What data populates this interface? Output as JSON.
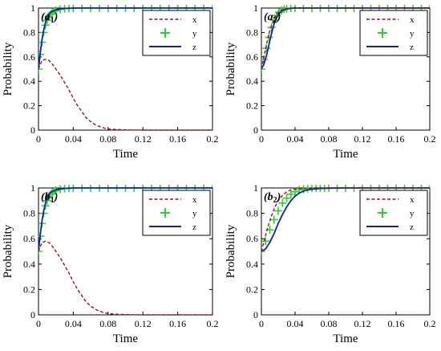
{
  "chart_data": [
    {
      "type": "line",
      "panel_label": "a",
      "panel_sub": "1",
      "xlabel": "Time",
      "ylabel": "Probability",
      "xlim": [
        0,
        0.2
      ],
      "ylim": [
        0,
        1
      ],
      "xticks": [
        "0",
        "0.04",
        "0.08",
        "0.12",
        "0.16",
        "0.2"
      ],
      "yticks": [
        "0",
        "0.2",
        "0.4",
        "0.6",
        "0.8",
        "1"
      ],
      "legend_position": "top-right",
      "series": [
        {
          "name": "x",
          "style": "dashed",
          "color": "#8b1a1a",
          "x": [
            0,
            0.004,
            0.008,
            0.012,
            0.016,
            0.02,
            0.025,
            0.03,
            0.035,
            0.04,
            0.045,
            0.05,
            0.055,
            0.06,
            0.065,
            0.07,
            0.075,
            0.08,
            0.09,
            0.1,
            0.12,
            0.14,
            0.16,
            0.18,
            0.2
          ],
          "y": [
            0.5,
            0.57,
            0.58,
            0.57,
            0.54,
            0.5,
            0.45,
            0.39,
            0.33,
            0.26,
            0.2,
            0.15,
            0.1,
            0.07,
            0.045,
            0.03,
            0.018,
            0.01,
            0.005,
            0.002,
            0,
            0,
            0,
            0,
            0
          ]
        },
        {
          "name": "y",
          "style": "plus",
          "color": "#33cc33",
          "x": [
            0,
            0.002,
            0.004,
            0.006,
            0.008,
            0.01,
            0.012,
            0.014,
            0.016,
            0.018,
            0.02,
            0.025,
            0.03,
            0.035,
            0.04,
            0.05,
            0.06,
            0.07,
            0.08,
            0.09,
            0.1,
            0.11,
            0.12,
            0.13,
            0.14,
            0.15,
            0.16,
            0.17,
            0.18,
            0.19,
            0.2
          ],
          "y": [
            0.5,
            0.62,
            0.72,
            0.8,
            0.86,
            0.9,
            0.93,
            0.95,
            0.965,
            0.975,
            0.98,
            0.99,
            0.995,
            0.997,
            0.998,
            1,
            1,
            1,
            1,
            1,
            1,
            1,
            1,
            1,
            1,
            1,
            1,
            1,
            1,
            1,
            1
          ]
        },
        {
          "name": "z",
          "style": "solid",
          "color": "#0b24a8",
          "x": [
            0,
            0.002,
            0.004,
            0.006,
            0.008,
            0.01,
            0.012,
            0.015,
            0.02,
            0.025,
            0.03,
            0.04,
            0.05,
            0.08,
            0.12,
            0.16,
            0.2
          ],
          "y": [
            0.5,
            0.63,
            0.74,
            0.82,
            0.88,
            0.92,
            0.95,
            0.97,
            0.985,
            0.993,
            0.997,
            1,
            1,
            1,
            1,
            1,
            1
          ]
        }
      ]
    },
    {
      "type": "line",
      "panel_label": "a",
      "panel_sub": "2",
      "xlabel": "Time",
      "ylabel": "Probability",
      "xlim": [
        0,
        0.2
      ],
      "ylim": [
        0,
        1
      ],
      "xticks": [
        "0",
        "0.04",
        "0.08",
        "0.12",
        "0.16",
        "0.2"
      ],
      "yticks": [
        "0",
        "0.2",
        "0.4",
        "0.6",
        "0.8",
        "1"
      ],
      "legend_position": "top-right",
      "series": [
        {
          "name": "x",
          "style": "dashed",
          "color": "#8b1a1a",
          "x": [
            0,
            0.003,
            0.006,
            0.009,
            0.012,
            0.015,
            0.018,
            0.021,
            0.025,
            0.03,
            0.035,
            0.04,
            0.06,
            0.1,
            0.14,
            0.2
          ],
          "y": [
            0.5,
            0.6,
            0.7,
            0.79,
            0.86,
            0.91,
            0.95,
            0.97,
            0.985,
            0.995,
            0.998,
            1,
            1,
            1,
            1,
            1
          ]
        },
        {
          "name": "y",
          "style": "plus",
          "color": "#33cc33",
          "x": [
            0,
            0.003,
            0.006,
            0.009,
            0.012,
            0.015,
            0.018,
            0.021,
            0.024,
            0.027,
            0.03,
            0.035,
            0.04,
            0.05,
            0.06,
            0.07,
            0.08,
            0.09,
            0.1,
            0.11,
            0.12,
            0.13,
            0.14,
            0.15,
            0.16,
            0.17,
            0.18,
            0.19,
            0.2
          ],
          "y": [
            0.5,
            0.58,
            0.67,
            0.76,
            0.84,
            0.9,
            0.94,
            0.965,
            0.98,
            0.99,
            0.995,
            0.998,
            1,
            1,
            1,
            1,
            1,
            1,
            1,
            1,
            1,
            1,
            1,
            1,
            1,
            1,
            1,
            1,
            1
          ]
        },
        {
          "name": "z",
          "style": "solid",
          "color": "#0b24a8",
          "x": [
            0,
            0.003,
            0.006,
            0.009,
            0.012,
            0.015,
            0.018,
            0.021,
            0.025,
            0.03,
            0.035,
            0.04,
            0.06,
            0.1,
            0.14,
            0.2
          ],
          "y": [
            0.5,
            0.54,
            0.61,
            0.7,
            0.79,
            0.87,
            0.92,
            0.955,
            0.98,
            0.993,
            0.998,
            1,
            1,
            1,
            1,
            1
          ]
        }
      ]
    },
    {
      "type": "line",
      "panel_label": "b",
      "panel_sub": "1",
      "xlabel": "Time",
      "ylabel": "Probability",
      "xlim": [
        0,
        0.2
      ],
      "ylim": [
        0,
        1
      ],
      "xticks": [
        "0",
        "0.04",
        "0.08",
        "0.12",
        "0.16",
        "0.2"
      ],
      "yticks": [
        "0",
        "0.2",
        "0.4",
        "0.6",
        "0.8",
        "1"
      ],
      "legend_position": "top-right",
      "series": [
        {
          "name": "x",
          "style": "dashed",
          "color": "#8b1a1a",
          "x": [
            0,
            0.004,
            0.008,
            0.012,
            0.016,
            0.02,
            0.025,
            0.03,
            0.035,
            0.04,
            0.045,
            0.05,
            0.055,
            0.06,
            0.065,
            0.07,
            0.075,
            0.08,
            0.09,
            0.1,
            0.12,
            0.14,
            0.16,
            0.18,
            0.2
          ],
          "y": [
            0.5,
            0.57,
            0.58,
            0.57,
            0.54,
            0.5,
            0.45,
            0.39,
            0.33,
            0.26,
            0.2,
            0.15,
            0.1,
            0.07,
            0.045,
            0.03,
            0.018,
            0.01,
            0.005,
            0.002,
            0,
            0,
            0,
            0,
            0
          ]
        },
        {
          "name": "y",
          "style": "plus",
          "color": "#33cc33",
          "x": [
            0,
            0.002,
            0.004,
            0.006,
            0.008,
            0.01,
            0.012,
            0.014,
            0.016,
            0.018,
            0.02,
            0.025,
            0.03,
            0.035,
            0.04,
            0.05,
            0.06,
            0.07,
            0.08,
            0.09,
            0.1,
            0.11,
            0.12,
            0.13,
            0.14,
            0.15,
            0.16,
            0.17,
            0.18,
            0.19,
            0.2
          ],
          "y": [
            0.5,
            0.62,
            0.72,
            0.8,
            0.86,
            0.9,
            0.93,
            0.95,
            0.965,
            0.975,
            0.98,
            0.99,
            0.995,
            0.997,
            0.998,
            1,
            1,
            1,
            1,
            1,
            1,
            1,
            1,
            1,
            1,
            1,
            1,
            1,
            1,
            1,
            1
          ]
        },
        {
          "name": "z",
          "style": "solid",
          "color": "#0b24a8",
          "x": [
            0,
            0.002,
            0.004,
            0.006,
            0.008,
            0.01,
            0.012,
            0.015,
            0.02,
            0.025,
            0.03,
            0.04,
            0.05,
            0.08,
            0.12,
            0.16,
            0.2
          ],
          "y": [
            0.5,
            0.63,
            0.74,
            0.82,
            0.88,
            0.92,
            0.95,
            0.97,
            0.985,
            0.993,
            0.997,
            1,
            1,
            1,
            1,
            1,
            1
          ]
        }
      ]
    },
    {
      "type": "line",
      "panel_label": "b",
      "panel_sub": "2",
      "xlabel": "Time",
      "ylabel": "Probability",
      "xlim": [
        0,
        0.2
      ],
      "ylim": [
        0,
        1
      ],
      "xticks": [
        "0",
        "0.04",
        "0.08",
        "0.12",
        "0.16",
        "0.2"
      ],
      "yticks": [
        "0",
        "0.2",
        "0.4",
        "0.6",
        "0.8",
        "1"
      ],
      "legend_position": "top-right",
      "series": [
        {
          "name": "x",
          "style": "dashed",
          "color": "#8b1a1a",
          "x": [
            0,
            0.004,
            0.008,
            0.012,
            0.016,
            0.02,
            0.025,
            0.03,
            0.035,
            0.04,
            0.045,
            0.05,
            0.06,
            0.08,
            0.12,
            0.16,
            0.2
          ],
          "y": [
            0.5,
            0.6,
            0.7,
            0.78,
            0.85,
            0.9,
            0.94,
            0.97,
            0.985,
            0.992,
            0.996,
            0.998,
            1,
            1,
            1,
            1,
            1
          ]
        },
        {
          "name": "y",
          "style": "plus",
          "color": "#33cc33",
          "x": [
            0,
            0.005,
            0.01,
            0.015,
            0.02,
            0.025,
            0.03,
            0.035,
            0.04,
            0.045,
            0.05,
            0.055,
            0.06,
            0.065,
            0.07,
            0.075,
            0.08,
            0.09,
            0.1,
            0.11,
            0.12,
            0.13,
            0.14,
            0.15,
            0.16,
            0.17,
            0.18,
            0.19,
            0.2
          ],
          "y": [
            0.5,
            0.58,
            0.67,
            0.75,
            0.82,
            0.88,
            0.92,
            0.95,
            0.97,
            0.985,
            0.99,
            0.995,
            0.998,
            1,
            1,
            1,
            1,
            1,
            1,
            1,
            1,
            1,
            1,
            1,
            1,
            1,
            1,
            1,
            1
          ]
        },
        {
          "name": "z",
          "style": "solid",
          "color": "#0b24a8",
          "x": [
            0,
            0.005,
            0.01,
            0.015,
            0.02,
            0.025,
            0.03,
            0.035,
            0.04,
            0.045,
            0.05,
            0.055,
            0.06,
            0.07,
            0.08,
            0.1,
            0.12,
            0.16,
            0.2
          ],
          "y": [
            0.5,
            0.52,
            0.57,
            0.64,
            0.72,
            0.79,
            0.85,
            0.9,
            0.935,
            0.96,
            0.975,
            0.985,
            0.99,
            0.996,
            0.998,
            1,
            1,
            1,
            1
          ]
        }
      ]
    }
  ]
}
